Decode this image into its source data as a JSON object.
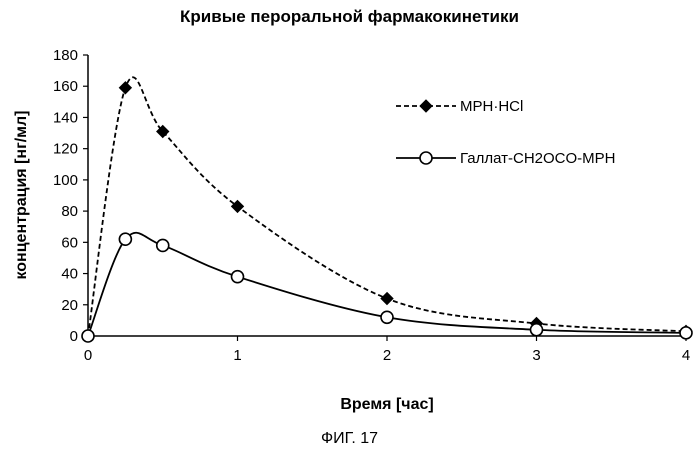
{
  "caption": "ФИГ. 17",
  "chart_data": {
    "type": "line",
    "title": "Кривые пероральной фармакокинетики",
    "xlabel": "Время [час]",
    "ylabel": "концентрация [нг/мл]",
    "xlim": [
      0,
      4
    ],
    "ylim": [
      0,
      180
    ],
    "xticks": [
      0,
      1,
      2,
      3,
      4
    ],
    "yticks": [
      0,
      20,
      40,
      60,
      80,
      100,
      120,
      140,
      160,
      180
    ],
    "grid": false,
    "legend_position": "top-right",
    "series": [
      {
        "name": "MPH·HCl",
        "marker": "diamond",
        "line_style": "dashed",
        "color": "#000000",
        "x": [
          0,
          0.25,
          0.5,
          1,
          2,
          3,
          4
        ],
        "y": [
          0,
          159,
          131,
          83,
          24,
          8,
          3
        ]
      },
      {
        "name": "Галлат-CH2OCO-MPH",
        "marker": "circle",
        "line_style": "solid",
        "color": "#000000",
        "x": [
          0,
          0.25,
          0.5,
          1,
          2,
          3,
          4
        ],
        "y": [
          0,
          62,
          58,
          38,
          12,
          4,
          2
        ]
      }
    ]
  }
}
